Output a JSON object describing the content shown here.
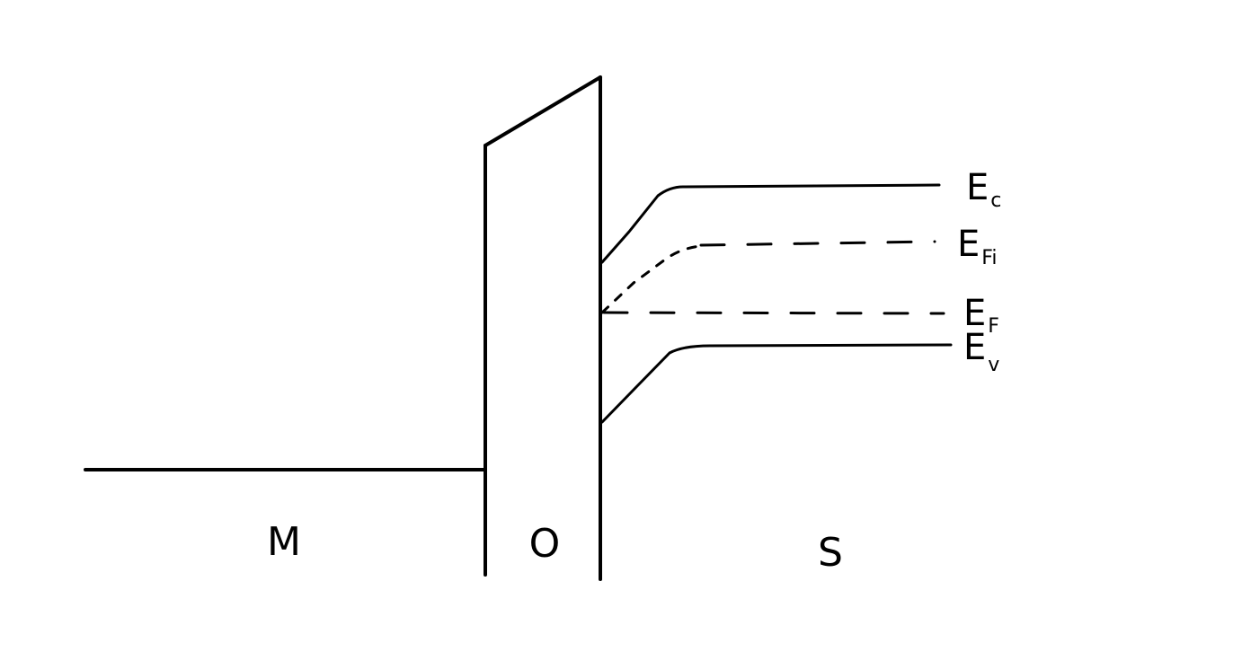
{
  "colors": {
    "background": "#ffffff",
    "ink": "#000000"
  },
  "regions": {
    "metal": "M",
    "oxide": "O",
    "semiconductor": "S"
  },
  "band_labels": {
    "conduction": {
      "symbol": "E",
      "subscript": "c"
    },
    "intrinsic_fermi": {
      "symbol": "E",
      "subscript": "Fi"
    },
    "fermi": {
      "symbol": "E",
      "subscript": "F"
    },
    "valence": {
      "symbol": "E",
      "subscript": "v"
    }
  }
}
